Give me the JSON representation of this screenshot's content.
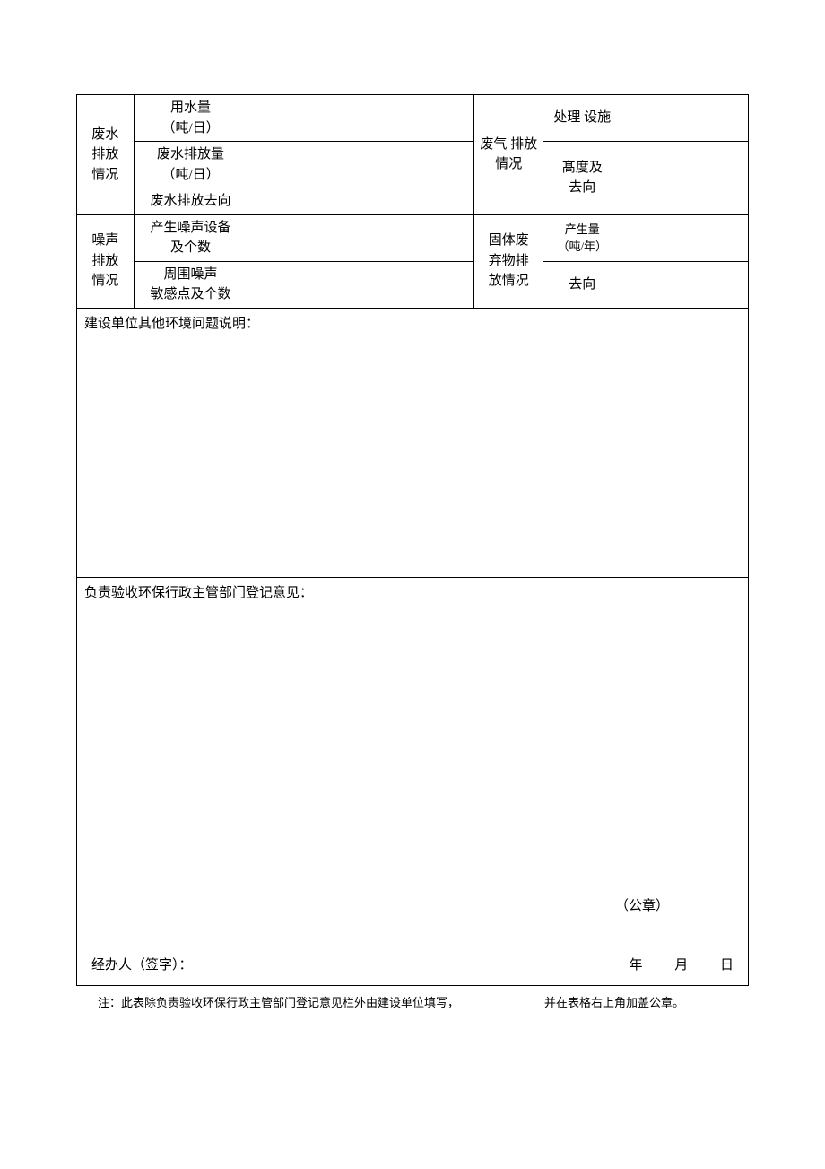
{
  "table": {
    "wastewater": {
      "group_label": "废水\n排放\n情况",
      "row1_label": "用水量\n（吨/日）",
      "row1_value": "",
      "row2_label": "废水排放量\n（吨/日）",
      "row2_value": "",
      "row3_label": "废水排放去向",
      "row3_value": ""
    },
    "gas": {
      "group_label": "废气 排放\n情况",
      "row1_label": "处理 设施",
      "row1_value": "",
      "row2_label": "髙度及\n去向",
      "row2_value": ""
    },
    "noise": {
      "group_label": "噪声\n排放\n情况",
      "row1_label": "产生噪声设备\n及个数",
      "row1_value": "",
      "row2_label": "周围噪声\n敏感点及个数",
      "row2_value": ""
    },
    "solid": {
      "group_label": "固体废\n弃物排\n放情况",
      "row1_label": "产生量\n（吨/年）",
      "row1_value": "",
      "row2_label": "去向",
      "row2_value": ""
    },
    "other_issues": {
      "title": "建设单位其他环境问题说明：",
      "content": ""
    },
    "opinion": {
      "title": "负责验收环保行政主管部门登记意见：",
      "seal": "（公章）",
      "signer_label": "经办人（签字）：",
      "date_year": "年",
      "date_month": "月",
      "date_day": "日"
    }
  },
  "footnote": {
    "part1": "注：此表除负责验收环保行政主管部门登记意见栏外由建设单位填写，",
    "part2": "并在表格右上角加盖公章。"
  },
  "colors": {
    "background": "#ffffff",
    "border": "#000000",
    "text": "#000000"
  },
  "typography": {
    "body_fontsize": 15,
    "small_fontsize": 13,
    "font_family": "SimSun"
  }
}
